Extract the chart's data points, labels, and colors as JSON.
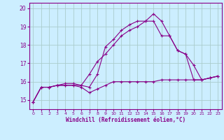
{
  "xlabel": "Windchill (Refroidissement éolien,°C)",
  "background_color": "#cceeff",
  "grid_color": "#aacccc",
  "line_color": "#880088",
  "xlim": [
    -0.5,
    23.5
  ],
  "ylim": [
    14.5,
    20.3
  ],
  "yticks": [
    15,
    16,
    17,
    18,
    19,
    20
  ],
  "xticks": [
    0,
    1,
    2,
    3,
    4,
    5,
    6,
    7,
    8,
    9,
    10,
    11,
    12,
    13,
    14,
    15,
    16,
    17,
    18,
    19,
    20,
    21,
    22,
    23
  ],
  "series": [
    {
      "x": [
        0,
        1,
        2,
        3,
        4,
        5,
        6,
        7,
        8,
        9,
        10,
        11,
        12,
        13,
        14,
        15,
        16,
        17,
        18,
        19,
        20,
        21,
        22,
        23
      ],
      "y": [
        14.9,
        15.7,
        15.7,
        15.8,
        15.8,
        15.8,
        15.8,
        15.7,
        16.4,
        17.9,
        18.3,
        18.8,
        19.1,
        19.3,
        19.3,
        19.7,
        19.3,
        18.5,
        17.7,
        17.5,
        16.1,
        16.1,
        16.2,
        16.3
      ]
    },
    {
      "x": [
        0,
        1,
        2,
        3,
        4,
        5,
        6,
        7,
        8,
        9,
        10,
        11,
        12,
        13,
        14,
        15,
        16,
        17,
        18,
        19,
        20,
        21,
        22,
        23
      ],
      "y": [
        14.9,
        15.7,
        15.7,
        15.8,
        15.8,
        15.8,
        15.7,
        15.4,
        15.6,
        15.8,
        16.0,
        16.0,
        16.0,
        16.0,
        16.0,
        16.0,
        16.1,
        16.1,
        16.1,
        16.1,
        16.1,
        16.1,
        16.2,
        16.3
      ]
    },
    {
      "x": [
        0,
        1,
        2,
        3,
        4,
        5,
        6,
        7,
        8,
        9,
        10,
        11,
        12,
        13,
        14,
        15,
        16,
        17,
        18,
        19,
        20,
        21,
        22,
        23
      ],
      "y": [
        14.9,
        15.7,
        15.7,
        15.8,
        15.9,
        15.9,
        15.8,
        16.4,
        17.1,
        17.5,
        18.0,
        18.5,
        18.8,
        19.0,
        19.3,
        19.3,
        18.5,
        18.5,
        17.7,
        17.5,
        16.9,
        16.1,
        16.2,
        16.3
      ]
    }
  ]
}
